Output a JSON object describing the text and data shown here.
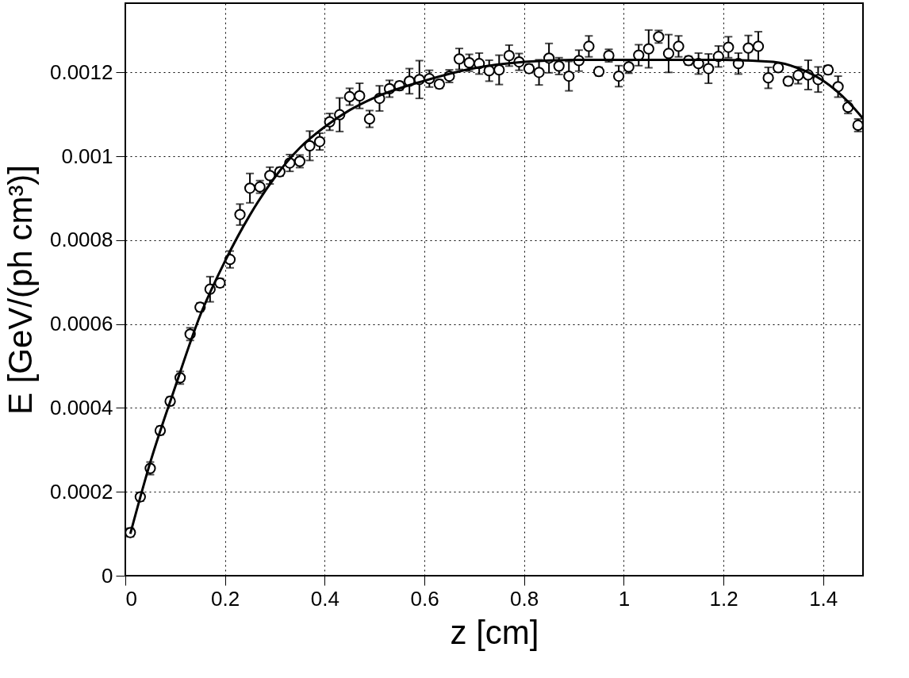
{
  "chart_data": {
    "type": "scatter",
    "xlabel": "z [cm]",
    "ylabel": "E [GeV/(ph cm³)]",
    "xlim": [
      0,
      1.48
    ],
    "ylim": [
      0,
      0.001365
    ],
    "xticks": [
      0,
      0.2,
      0.4,
      0.6,
      0.8,
      1,
      1.2,
      1.4
    ],
    "yticks": [
      0,
      0.0002,
      0.0004,
      0.0006,
      0.0008,
      0.001,
      0.0012
    ],
    "grid": true,
    "series": [
      {
        "color": "#000000",
        "marker": "circle",
        "x": [
          0.01,
          0.03,
          0.05,
          0.07,
          0.09,
          0.11,
          0.13,
          0.15,
          0.17,
          0.19,
          0.21,
          0.23,
          0.25,
          0.27,
          0.29,
          0.31,
          0.33,
          0.35,
          0.37,
          0.39,
          0.41,
          0.43,
          0.45,
          0.47,
          0.49,
          0.51,
          0.53,
          0.55,
          0.57,
          0.59,
          0.61,
          0.63,
          0.65,
          0.67,
          0.69,
          0.71,
          0.73,
          0.75,
          0.77,
          0.79,
          0.81,
          0.83,
          0.85,
          0.87,
          0.89,
          0.91,
          0.93,
          0.95,
          0.97,
          0.99,
          1.01,
          1.03,
          1.05,
          1.07,
          1.09,
          1.11,
          1.13,
          1.15,
          1.17,
          1.19,
          1.21,
          1.23,
          1.25,
          1.27,
          1.29,
          1.31,
          1.33,
          1.35,
          1.37,
          1.39,
          1.41,
          1.43,
          1.45,
          1.47
        ],
        "values": [
          0.000103,
          0.000188,
          0.000256,
          0.000346,
          0.000416,
          0.000472,
          0.000576,
          0.00064,
          0.000683,
          0.000698,
          0.000754,
          0.000861,
          0.000924,
          0.000927,
          0.000954,
          0.000963,
          0.000984,
          0.000988,
          0.001025,
          0.001035,
          0.001082,
          0.001099,
          0.001142,
          0.001144,
          0.001089,
          0.001138,
          0.001161,
          0.001168,
          0.001179,
          0.001183,
          0.001185,
          0.001172,
          0.001191,
          0.001232,
          0.001223,
          0.001221,
          0.001204,
          0.001206,
          0.00124,
          0.001225,
          0.001209,
          0.0012,
          0.001234,
          0.001215,
          0.001191,
          0.001228,
          0.001262,
          0.001202,
          0.00124,
          0.001191,
          0.001213,
          0.001241,
          0.001256,
          0.001285,
          0.001245,
          0.001262,
          0.001228,
          0.001221,
          0.001209,
          0.001238,
          0.00126,
          0.001221,
          0.001258,
          0.001262,
          0.001187,
          0.001211,
          0.001179,
          0.001193,
          0.001194,
          0.001183,
          0.001206,
          0.001166,
          0.001117,
          0.001074
        ],
        "errors": [
          1e-05,
          1e-05,
          1.5e-05,
          1e-05,
          1e-05,
          1.5e-05,
          1.5e-05,
          1e-05,
          3e-05,
          1e-05,
          2e-05,
          2.5e-05,
          3.5e-05,
          1.5e-05,
          2e-05,
          1e-05,
          2e-05,
          1.5e-05,
          3.5e-05,
          2e-05,
          2e-05,
          4e-05,
          2e-05,
          3e-05,
          2e-05,
          3e-05,
          2e-05,
          1e-05,
          3e-05,
          4.5e-05,
          2e-05,
          1e-05,
          1.5e-05,
          2.5e-05,
          2e-05,
          2.5e-05,
          2.5e-05,
          3.5e-05,
          2.5e-05,
          2e-05,
          1e-05,
          3e-05,
          3.5e-05,
          2e-05,
          3.5e-05,
          2.5e-05,
          2.5e-05,
          1e-05,
          1.5e-05,
          2.5e-05,
          1.5e-05,
          2.5e-05,
          4.5e-05,
          1.5e-05,
          4.5e-05,
          2.5e-05,
          1e-05,
          2.5e-05,
          3.5e-05,
          2.5e-05,
          2.5e-05,
          2.5e-05,
          3e-05,
          3.5e-05,
          2.5e-05,
          1e-05,
          1e-05,
          2e-05,
          3.5e-05,
          3e-05,
          1e-05,
          2.5e-05,
          1.5e-05,
          1.5e-05
        ]
      },
      {
        "type": "line",
        "color": "#000000",
        "x": [
          0.01,
          0.05,
          0.1,
          0.15,
          0.2,
          0.25,
          0.3,
          0.35,
          0.4,
          0.45,
          0.5,
          0.6,
          0.7,
          0.8,
          0.9,
          1.0,
          1.1,
          1.2,
          1.3,
          1.35,
          1.4,
          1.45,
          1.48
        ],
        "values": [
          0.0001,
          0.00027,
          0.00045,
          0.00062,
          0.00075,
          0.00086,
          0.00095,
          0.00102,
          0.00107,
          0.00111,
          0.00114,
          0.00118,
          0.00121,
          0.001225,
          0.00123,
          0.00123,
          0.00123,
          0.00123,
          0.001225,
          0.00121,
          0.00118,
          0.00113,
          0.00109
        ]
      }
    ]
  }
}
